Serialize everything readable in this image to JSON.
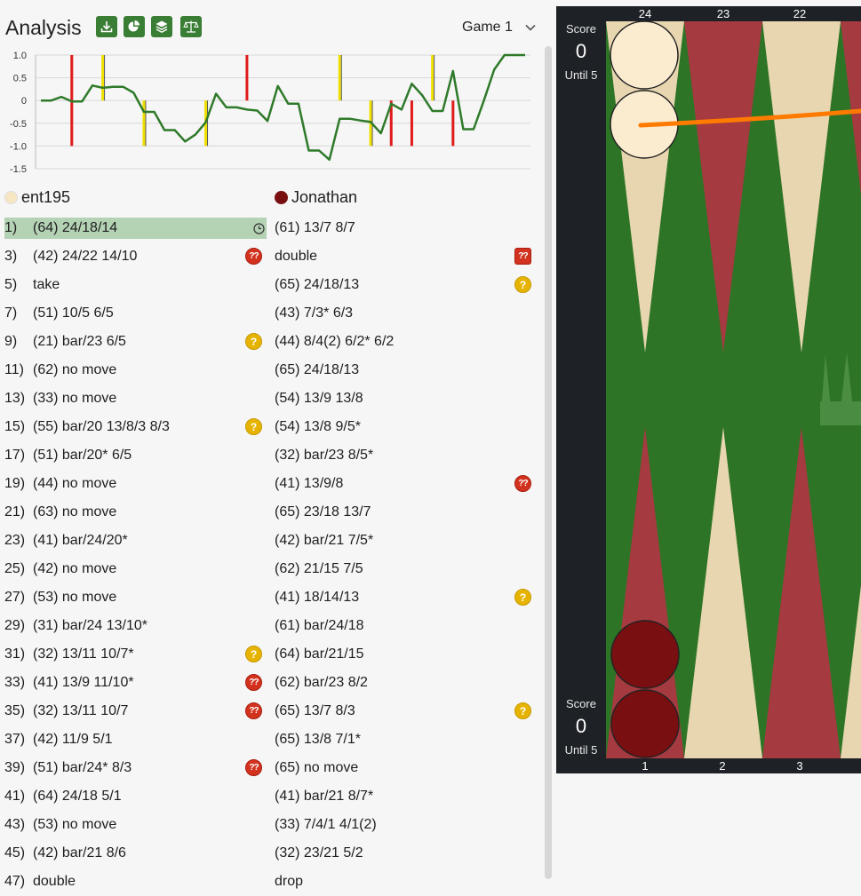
{
  "header": {
    "title": "Analysis",
    "buttons": [
      {
        "name": "download-button",
        "icon": "download-icon"
      },
      {
        "name": "pie-chart-button",
        "icon": "pie-chart-icon"
      },
      {
        "name": "layers-button",
        "icon": "layers-icon"
      },
      {
        "name": "balance-button",
        "icon": "balance-scale-icon"
      }
    ],
    "game_select": "Game 1"
  },
  "colors": {
    "accent": "#3a7d34",
    "highlight": "#b4d2b4",
    "error": "#d2321e",
    "doubtful": "#e6b400",
    "board_green": "#2e7426",
    "board_red": "#a53a40",
    "board_cream": "#e8d6b0",
    "orange_arrow": "#ff7a00"
  },
  "chart_data": {
    "type": "line",
    "ylim": [
      -1.5,
      1.0
    ],
    "yticks": [
      "1.0",
      "0.5",
      "0",
      "-0.5",
      "-1.0",
      "-1.5"
    ],
    "grid": true,
    "series": [
      {
        "values": [
          0.0,
          0.0,
          0.08,
          -0.02,
          -0.02,
          0.33,
          0.28,
          0.3,
          0.3,
          0.17,
          -0.25,
          -0.25,
          -0.65,
          -0.65,
          -0.9,
          -0.75,
          -0.48,
          0.15,
          -0.15,
          -0.15,
          -0.2,
          -0.22,
          -0.45,
          0.32,
          -0.07,
          -0.07,
          -1.1,
          -1.1,
          -1.3,
          -0.4,
          -0.4,
          -0.44,
          -0.47,
          -0.72,
          -0.07,
          -0.2,
          0.37,
          0.12,
          -0.23,
          -0.23,
          0.65,
          -0.63,
          -0.63,
          0.0,
          0.68,
          1.0,
          1.0,
          1.0
        ]
      }
    ],
    "markers": [
      {
        "index": 3,
        "value": -1.0,
        "color": "red"
      },
      {
        "index": 3,
        "value": 1.0,
        "color": "red"
      },
      {
        "index": 6,
        "value": 1.0,
        "color": "yellow"
      },
      {
        "index": 10,
        "value": -1.0,
        "color": "yellow"
      },
      {
        "index": 16,
        "value": -1.0,
        "color": "yellow"
      },
      {
        "index": 20,
        "value": 1.0,
        "color": "red"
      },
      {
        "index": 29,
        "value": 1.0,
        "color": "yellow"
      },
      {
        "index": 32,
        "value": -1.0,
        "color": "yellow"
      },
      {
        "index": 34,
        "value": -1.0,
        "color": "red"
      },
      {
        "index": 36,
        "value": -1.0,
        "color": "red"
      },
      {
        "index": 38,
        "value": 1.0,
        "color": "yellow"
      },
      {
        "index": 40,
        "value": -1.0,
        "color": "red"
      }
    ]
  },
  "players": {
    "p1": {
      "name": "ent195",
      "color": "#f7e6c4"
    },
    "p2": {
      "name": "Jonathan",
      "color": "#7a0f12"
    }
  },
  "moves": [
    {
      "num": "1)",
      "m1": "(64) 24/18/14",
      "b1": "clock",
      "m2": "(61) 13/7 8/7",
      "b2": "",
      "selected": true
    },
    {
      "num": "3)",
      "m1": "(42) 24/22 14/10",
      "b1": "qq",
      "m2": "double",
      "b2": "sq"
    },
    {
      "num": "5)",
      "m1": "take",
      "b1": "",
      "m2": "(65) 24/18/13",
      "b2": "q"
    },
    {
      "num": "7)",
      "m1": "(51) 10/5 6/5",
      "b1": "",
      "m2": "(43) 7/3* 6/3",
      "b2": ""
    },
    {
      "num": "9)",
      "m1": "(21) bar/23 6/5",
      "b1": "q",
      "m2": "(44) 8/4(2) 6/2* 6/2",
      "b2": ""
    },
    {
      "num": "11)",
      "m1": "(62) no move",
      "b1": "",
      "m2": "(65) 24/18/13",
      "b2": ""
    },
    {
      "num": "13)",
      "m1": "(33) no move",
      "b1": "",
      "m2": "(54) 13/9 13/8",
      "b2": ""
    },
    {
      "num": "15)",
      "m1": "(55) bar/20 13/8/3 8/3",
      "b1": "q",
      "m2": "(54) 13/8 9/5*",
      "b2": ""
    },
    {
      "num": "17)",
      "m1": "(51) bar/20* 6/5",
      "b1": "",
      "m2": "(32) bar/23 8/5*",
      "b2": ""
    },
    {
      "num": "19)",
      "m1": "(44) no move",
      "b1": "",
      "m2": "(41) 13/9/8",
      "b2": "qq"
    },
    {
      "num": "21)",
      "m1": "(63) no move",
      "b1": "",
      "m2": "(65) 23/18 13/7",
      "b2": ""
    },
    {
      "num": "23)",
      "m1": "(41) bar/24/20*",
      "b1": "",
      "m2": "(42) bar/21 7/5*",
      "b2": ""
    },
    {
      "num": "25)",
      "m1": "(42) no move",
      "b1": "",
      "m2": "(62) 21/15 7/5",
      "b2": ""
    },
    {
      "num": "27)",
      "m1": "(53) no move",
      "b1": "",
      "m2": "(41) 18/14/13",
      "b2": "q"
    },
    {
      "num": "29)",
      "m1": "(31) bar/24 13/10*",
      "b1": "",
      "m2": "(61) bar/24/18",
      "b2": ""
    },
    {
      "num": "31)",
      "m1": "(32) 13/11 10/7*",
      "b1": "q",
      "m2": "(64) bar/21/15",
      "b2": ""
    },
    {
      "num": "33)",
      "m1": "(41) 13/9 11/10*",
      "b1": "qq",
      "m2": "(62) bar/23 8/2",
      "b2": ""
    },
    {
      "num": "35)",
      "m1": "(32) 13/11 10/7",
      "b1": "qq",
      "m2": "(65) 13/7 8/3",
      "b2": "q"
    },
    {
      "num": "37)",
      "m1": "(42) 11/9 5/1",
      "b1": "",
      "m2": "(65) 13/8 7/1*",
      "b2": ""
    },
    {
      "num": "39)",
      "m1": "(51) bar/24* 8/3",
      "b1": "qq",
      "m2": "(65) no move",
      "b2": ""
    },
    {
      "num": "41)",
      "m1": "(64) 24/18 5/1",
      "b1": "",
      "m2": "(41) bar/21 8/7*",
      "b2": ""
    },
    {
      "num": "43)",
      "m1": "(53) no move",
      "b1": "",
      "m2": "(33) 7/4/1 4/1(2)",
      "b2": ""
    },
    {
      "num": "45)",
      "m1": "(42) bar/21 8/6",
      "b1": "",
      "m2": "(32) 23/21 5/2",
      "b2": ""
    },
    {
      "num": "47)",
      "m1": "double",
      "b1": "",
      "m2": "drop",
      "b2": ""
    }
  ],
  "badge_text": {
    "q": "?",
    "qq": "??"
  },
  "board": {
    "top": {
      "score_label": "Score",
      "score": "0",
      "until": "Until 5"
    },
    "bottom": {
      "score_label": "Score",
      "score": "0",
      "until": "Until 5"
    },
    "top_points": [
      "24",
      "23",
      "22"
    ],
    "bottom_points": [
      "1",
      "2",
      "3"
    ]
  }
}
